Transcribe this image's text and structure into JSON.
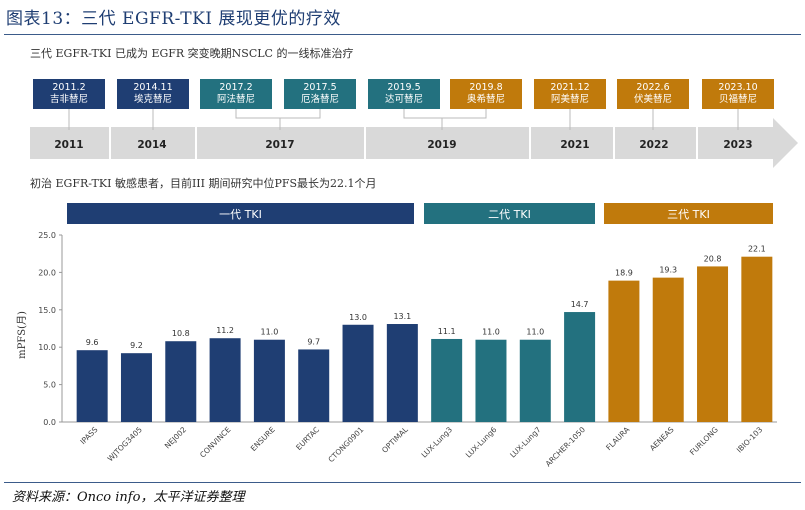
{
  "figure_title": "图表13：三代 EGFR-TKI 展现更优的疗效",
  "timeline_heading": "三代 EGFR-TKI 已成为 EGFR 突变晚期NSCLC 的一线标准治疗",
  "timeline": {
    "events": [
      {
        "date": "2011.2",
        "drug": "吉非替尼",
        "gen": 1
      },
      {
        "date": "2014.11",
        "drug": "埃克替尼",
        "gen": 1
      },
      {
        "date": "2017.2",
        "drug": "阿法替尼",
        "gen": 2
      },
      {
        "date": "2017.5",
        "drug": "厄洛替尼",
        "gen": 2
      },
      {
        "date": "2019.5",
        "drug": "达可替尼",
        "gen": 2
      },
      {
        "date": "2019.8",
        "drug": "奥希替尼",
        "gen": 3
      },
      {
        "date": "2021.12",
        "drug": "阿美替尼",
        "gen": 3
      },
      {
        "date": "2022.6",
        "drug": "伏美替尼",
        "gen": 3
      },
      {
        "date": "2023.10",
        "drug": "贝福替尼",
        "gen": 3
      }
    ],
    "years": [
      "2011",
      "2014",
      "2017",
      "2019",
      "2021",
      "2022",
      "2023"
    ]
  },
  "chart_heading": "初治 EGFR-TKI 敏感患者，目前III 期间研究中位PFS最长为22.1个月",
  "generation_labels": [
    "一代 TKI",
    "二代 TKI",
    "三代 TKI"
  ],
  "colors": {
    "gen1": "#1f3e73",
    "gen2": "#23717f",
    "gen3": "#c07a0c",
    "arrow": "#d9d9d9"
  },
  "chart_data": {
    "type": "bar",
    "title": "",
    "xlabel": "",
    "ylabel": "mPFS(月)",
    "ylim": [
      0,
      25
    ],
    "yticks": [
      "0.0",
      "5.0",
      "10.0",
      "15.0",
      "20.0",
      "25.0"
    ],
    "categories": [
      "IPASS",
      "WJTOG3405",
      "NEJ002",
      "CONVINCE",
      "ENSURE",
      "EURTAC",
      "CTONG0901",
      "OPTIMAL",
      "LUX-Lung3",
      "LUX-Lung6",
      "LUX-Lung7",
      "ARCHER-1050",
      "FLAURA",
      "AENEAS",
      "FURLONG",
      "IBIO-103"
    ],
    "values": [
      9.6,
      9.2,
      10.8,
      11.2,
      11.0,
      9.7,
      13.0,
      13.1,
      11.1,
      11.0,
      11.0,
      14.7,
      18.9,
      19.3,
      20.8,
      22.1
    ],
    "value_labels": [
      "9.6",
      "9.2",
      "10.8",
      "11.2",
      "11.0",
      "9.7",
      "13.0",
      "13.1",
      "11.1",
      "11.0",
      "11.0",
      "14.7",
      "18.9",
      "19.3",
      "20.8",
      "22.1"
    ],
    "generation": [
      1,
      1,
      1,
      1,
      1,
      1,
      1,
      1,
      2,
      2,
      2,
      2,
      3,
      3,
      3,
      3
    ],
    "grid": false,
    "legend": "none"
  },
  "source": "资料来源：Onco info，太平洋证券整理"
}
